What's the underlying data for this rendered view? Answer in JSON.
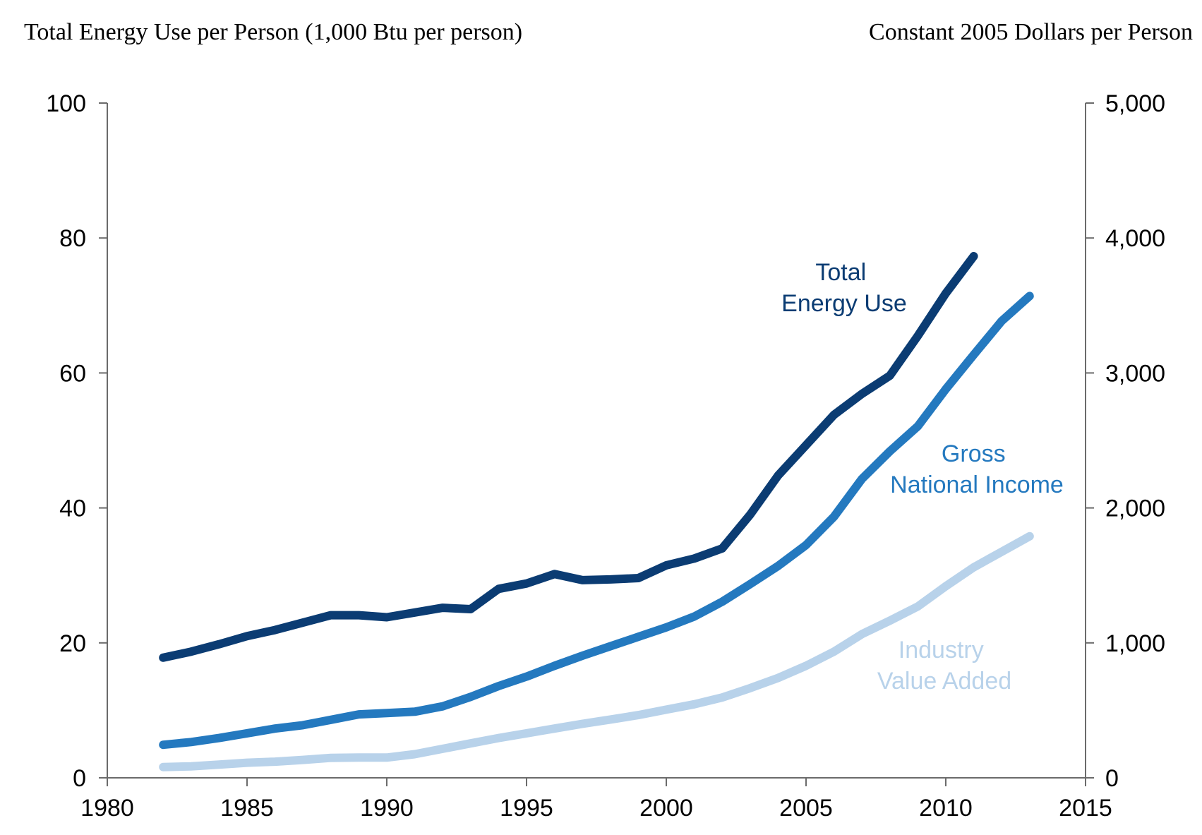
{
  "chart_data": {
    "type": "line",
    "left_axis_title": "Total Energy Use per Person (1,000 Btu per person)",
    "right_axis_title": "Constant 2005 Dollars per Person",
    "xlim": [
      1980,
      2015
    ],
    "x_ticks": [
      "1980",
      "1985",
      "1990",
      "1995",
      "2000",
      "2005",
      "2010",
      "2015"
    ],
    "ylim_left": [
      0,
      100
    ],
    "y_ticks_left": [
      "0",
      "20",
      "40",
      "60",
      "80",
      "100"
    ],
    "ylim_right": [
      0,
      5000
    ],
    "y_ticks_right": [
      "0",
      "1,000",
      "2,000",
      "3,000",
      "4,000",
      "5,000"
    ],
    "grid": false,
    "series": [
      {
        "name": "Total Energy Use",
        "label_lines": [
          "Total",
          "Energy Use"
        ],
        "axis": "left",
        "color": "#0b3c73",
        "x": [
          1982,
          1983,
          1984,
          1985,
          1986,
          1987,
          1988,
          1989,
          1990,
          1991,
          1992,
          1993,
          1994,
          1995,
          1996,
          1997,
          1998,
          1999,
          2000,
          2001,
          2002,
          2003,
          2004,
          2005,
          2006,
          2007,
          2008,
          2009,
          2010,
          2011
        ],
        "values": [
          17.8,
          18.7,
          19.8,
          21.0,
          21.9,
          23.0,
          24.1,
          24.1,
          23.8,
          24.5,
          25.2,
          25.0,
          28.0,
          28.8,
          30.2,
          29.3,
          29.4,
          29.6,
          31.5,
          32.5,
          34.0,
          39.0,
          44.8,
          49.3,
          53.8,
          56.9,
          59.6,
          65.5,
          71.8,
          77.3
        ]
      },
      {
        "name": "Gross National Income",
        "label_lines": [
          "Gross",
          "National Income"
        ],
        "axis": "right",
        "color": "#2479bf",
        "x": [
          1982,
          1983,
          1984,
          1985,
          1986,
          1987,
          1988,
          1989,
          1990,
          1991,
          1992,
          1993,
          1994,
          1995,
          1996,
          1997,
          1998,
          1999,
          2000,
          2001,
          2002,
          2003,
          2004,
          2005,
          2006,
          2007,
          2008,
          2009,
          2010,
          2011,
          2012,
          2013
        ],
        "values": [
          245,
          265,
          295,
          330,
          365,
          390,
          430,
          470,
          480,
          490,
          530,
          600,
          680,
          750,
          830,
          905,
          975,
          1045,
          1115,
          1195,
          1305,
          1435,
          1570,
          1725,
          1935,
          2215,
          2420,
          2605,
          2880,
          3135,
          3385,
          3570
        ]
      },
      {
        "name": "Industry Value Added",
        "label_lines": [
          "Industry",
          "Value Added"
        ],
        "axis": "right",
        "color": "#b8d2ea",
        "x": [
          1982,
          1983,
          1984,
          1985,
          1986,
          1987,
          1988,
          1989,
          1990,
          1991,
          1992,
          1993,
          1994,
          1995,
          1996,
          1997,
          1998,
          1999,
          2000,
          2001,
          2002,
          2003,
          2004,
          2005,
          2006,
          2007,
          2008,
          2009,
          2010,
          2011,
          2012,
          2013
        ],
        "values": [
          80,
          85,
          98,
          112,
          120,
          133,
          148,
          150,
          150,
          175,
          215,
          255,
          295,
          330,
          365,
          400,
          432,
          465,
          505,
          545,
          595,
          665,
          740,
          830,
          935,
          1065,
          1165,
          1270,
          1420,
          1560,
          1675,
          1790
        ]
      }
    ]
  }
}
